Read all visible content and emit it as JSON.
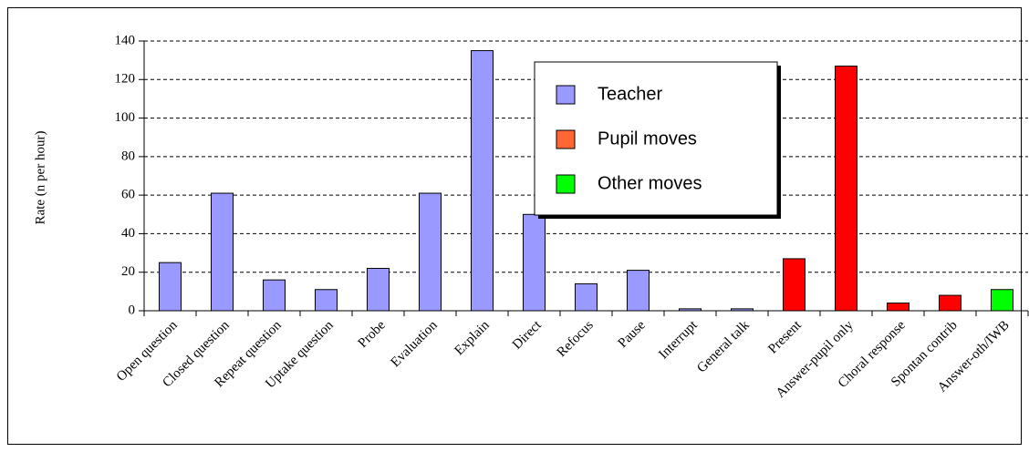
{
  "chart_data": {
    "type": "bar",
    "y_label": "Rate (n per hour)",
    "categories": [
      "Open question",
      "Closed question",
      "Repeat question",
      "Uptake question",
      "Probe",
      "Evaluation",
      "Explain",
      "Direct",
      "Refocus",
      "Pause",
      "Interrupt",
      "General talk",
      "Present",
      "Answer-pupil only",
      "Choral response",
      "Spontan contrib",
      "Answer-oth/IWB"
    ],
    "series": [
      {
        "name": "Teacher",
        "color": "#9999ff",
        "legend_color": "#9999ff",
        "values": [
          25,
          61,
          16,
          11,
          22,
          61,
          135,
          50,
          14,
          21,
          1,
          1,
          null,
          null,
          null,
          null,
          null
        ]
      },
      {
        "name": "Pupil moves",
        "color": "#ff0000",
        "legend_color": "#ff6633",
        "values": [
          null,
          null,
          null,
          null,
          null,
          null,
          null,
          null,
          null,
          null,
          null,
          null,
          27,
          127,
          4,
          8,
          null
        ]
      },
      {
        "name": "Other moves",
        "color": "#00ff00",
        "legend_color": "#00ff00",
        "values": [
          null,
          null,
          null,
          null,
          null,
          null,
          null,
          null,
          null,
          null,
          null,
          null,
          null,
          null,
          null,
          null,
          11
        ]
      }
    ],
    "ylim": [
      0,
      140
    ],
    "yticks": [
      0,
      20,
      40,
      60,
      80,
      100,
      120,
      140
    ],
    "grid": true,
    "legend": "top-center"
  }
}
